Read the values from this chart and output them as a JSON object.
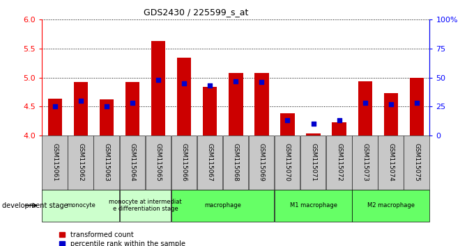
{
  "title": "GDS2430 / 225599_s_at",
  "samples": [
    "GSM115061",
    "GSM115062",
    "GSM115063",
    "GSM115064",
    "GSM115065",
    "GSM115066",
    "GSM115067",
    "GSM115068",
    "GSM115069",
    "GSM115070",
    "GSM115071",
    "GSM115072",
    "GSM115073",
    "GSM115074",
    "GSM115075"
  ],
  "bar_values": [
    4.63,
    4.92,
    4.62,
    4.92,
    5.63,
    5.34,
    4.84,
    5.08,
    5.08,
    4.38,
    4.03,
    4.23,
    4.93,
    4.73,
    5.0
  ],
  "percentile_values": [
    25,
    30,
    25,
    28,
    48,
    45,
    43,
    47,
    46,
    13,
    10,
    13,
    28,
    27,
    28
  ],
  "ylim_left": [
    4.0,
    6.0
  ],
  "ylim_right": [
    0,
    100
  ],
  "yticks_left": [
    4.0,
    4.5,
    5.0,
    5.5,
    6.0
  ],
  "yticks_right": [
    0,
    25,
    50,
    75,
    100
  ],
  "ytick_labels_right": [
    "0",
    "25",
    "50",
    "75",
    "100%"
  ],
  "bar_color": "#cc0000",
  "dot_color": "#0000cc",
  "bar_bottom": 4.0,
  "groups": [
    {
      "label": "monocyte",
      "start": 0,
      "end": 3,
      "color": "#ccffcc",
      "n_samples": 3
    },
    {
      "label": "monocyte at intermediat\ne differentiation stage",
      "start": 3,
      "end": 5,
      "color": "#ccffcc",
      "n_samples": 2
    },
    {
      "label": "macrophage",
      "start": 5,
      "end": 9,
      "color": "#66ff66",
      "n_samples": 4
    },
    {
      "label": "M1 macrophage",
      "start": 9,
      "end": 12,
      "color": "#66ff66",
      "n_samples": 3
    },
    {
      "label": "M2 macrophage",
      "start": 12,
      "end": 15,
      "color": "#66ff66",
      "n_samples": 3
    }
  ],
  "group_label": "development stage",
  "legend_bar_label": "transformed count",
  "legend_dot_label": "percentile rank within the sample",
  "background_color": "#ffffff",
  "tick_bg_color": "#c8c8c8"
}
